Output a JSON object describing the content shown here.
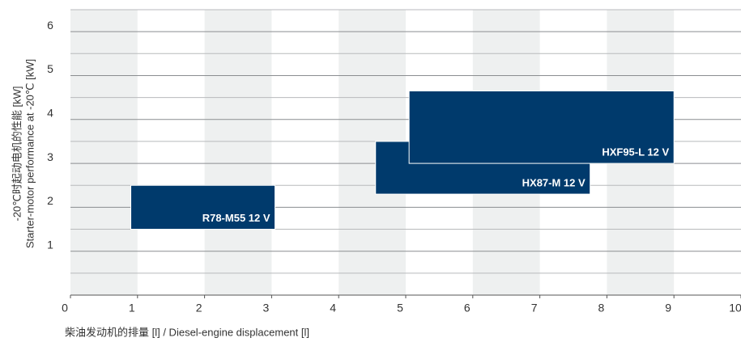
{
  "chart_data": {
    "type": "range-bar",
    "x_label": "柴油发动机的排量 [l] / Diesel-engine displacement [l]",
    "y_label": [
      "-20℃时起动电机的性能 [kW]",
      "Starter-motor performance at -20℃ [kW]"
    ],
    "xlim": [
      0,
      10
    ],
    "xticks": [
      0,
      1,
      2,
      3,
      4,
      5,
      6,
      7,
      8,
      9,
      10
    ],
    "ylim": [
      0,
      6.5
    ],
    "yticks": [
      1,
      2,
      3,
      4,
      5,
      6
    ],
    "y_minor_ticks": [
      0.5,
      1.5,
      2.5,
      3.5,
      4.5,
      5.5,
      6.5
    ],
    "grid": true,
    "bands": true,
    "color": "#003a6c",
    "series": [
      {
        "name": "R78-M55 12 V",
        "x": [
          0.9,
          3.05
        ],
        "y": [
          1.5,
          2.5
        ]
      },
      {
        "name": "HX87-M 12 V",
        "x": [
          4.55,
          7.75
        ],
        "y": [
          2.3,
          3.5
        ]
      },
      {
        "name": "HXF95-L 12 V",
        "x": [
          5.05,
          9.0
        ],
        "y": [
          3.0,
          4.65
        ]
      }
    ]
  }
}
